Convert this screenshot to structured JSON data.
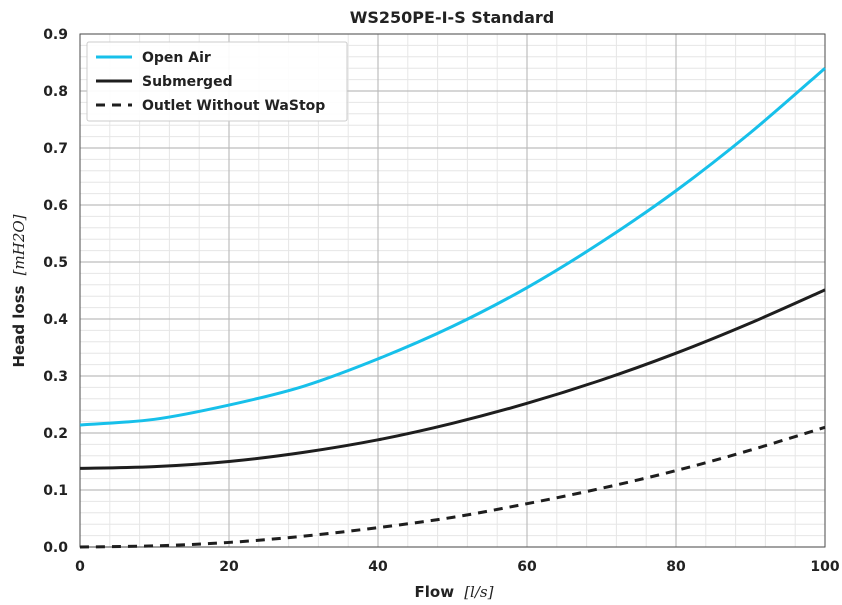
{
  "chart_data": {
    "type": "line",
    "title": "WS250PE-I-S Standard",
    "xlabel": "Flow",
    "xlabel_unit": "[l/s]",
    "ylabel": "Head loss",
    "ylabel_unit": "[mH2O]",
    "xlim": [
      0,
      100
    ],
    "ylim": [
      0,
      0.9
    ],
    "x_ticks": [
      "0",
      "20",
      "40",
      "60",
      "80",
      "100"
    ],
    "y_ticks": [
      "0.0",
      "0.1",
      "0.2",
      "0.3",
      "0.4",
      "0.5",
      "0.6",
      "0.7",
      "0.8",
      "0.9"
    ],
    "grid": true,
    "legend_position": "top-left",
    "x": [
      0,
      10,
      20,
      30,
      40,
      50,
      60,
      70,
      80,
      90,
      100
    ],
    "series": [
      {
        "name": "Open Air",
        "color": "#17c0ea",
        "dash": "solid",
        "values": [
          0.214,
          0.224,
          0.249,
          0.282,
          0.33,
          0.387,
          0.455,
          0.535,
          0.625,
          0.727,
          0.84
        ]
      },
      {
        "name": "Submerged",
        "color": "#1e1e1e",
        "dash": "solid",
        "values": [
          0.138,
          0.141,
          0.15,
          0.166,
          0.188,
          0.217,
          0.252,
          0.293,
          0.34,
          0.393,
          0.451
        ]
      },
      {
        "name": "Outlet Without WaStop",
        "color": "#1e1e1e",
        "dash": "dashed",
        "values": [
          0.0,
          0.002,
          0.008,
          0.019,
          0.034,
          0.052,
          0.076,
          0.103,
          0.134,
          0.17,
          0.21
        ]
      }
    ]
  }
}
